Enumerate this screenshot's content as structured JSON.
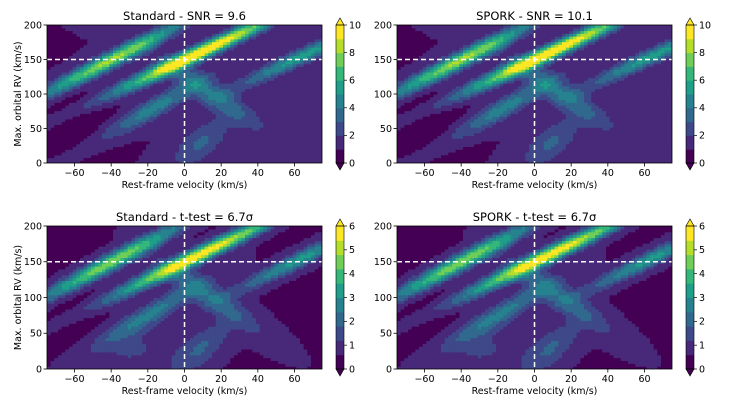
{
  "figure": {
    "colormap": [
      "#440154",
      "#482878",
      "#3e4989",
      "#31688e",
      "#26828e",
      "#1f9e89",
      "#35b779",
      "#6ece58",
      "#b5de2b",
      "#fde725"
    ],
    "background": "#ffffff"
  },
  "chart_data": [
    {
      "type": "heatmap",
      "title": "Standard - SNR = 9.6",
      "xlabel": "Rest-frame velocity (km/s)",
      "ylabel": "Max. orbital RV (km/s)",
      "xlim": [
        -75,
        75
      ],
      "ylim": [
        0,
        200
      ],
      "xticks": [
        "-60",
        "-40",
        "-20",
        "0",
        "20",
        "40",
        "60"
      ],
      "yticks": [
        "0",
        "50",
        "100",
        "150",
        "200"
      ],
      "colorbar": {
        "min": 0,
        "max": 10,
        "ticks": [
          "0",
          "2",
          "4",
          "6",
          "8",
          "10"
        ]
      },
      "crosshair": {
        "x": 0,
        "y": 150
      },
      "peak": {
        "x": 0,
        "y": 150,
        "value": 9.6
      }
    },
    {
      "type": "heatmap",
      "title": "SPORK - SNR = 10.1",
      "xlabel": "Rest-frame velocity (km/s)",
      "ylabel": "",
      "xlim": [
        -75,
        75
      ],
      "ylim": [
        0,
        200
      ],
      "xticks": [
        "-60",
        "-40",
        "-20",
        "0",
        "20",
        "40",
        "60"
      ],
      "yticks": [
        "0",
        "50",
        "100",
        "150",
        "200"
      ],
      "colorbar": {
        "min": 0,
        "max": 10,
        "ticks": [
          "0",
          "2",
          "4",
          "6",
          "8",
          "10"
        ]
      },
      "crosshair": {
        "x": 0,
        "y": 150
      },
      "peak": {
        "x": 0,
        "y": 150,
        "value": 10.1
      }
    },
    {
      "type": "heatmap",
      "title": "Standard - t-test = 6.7σ",
      "xlabel": "Rest-frame velocity (km/s)",
      "ylabel": "Max. orbital RV (km/s)",
      "xlim": [
        -75,
        75
      ],
      "ylim": [
        0,
        200
      ],
      "xticks": [
        "-60",
        "-40",
        "-20",
        "0",
        "20",
        "40",
        "60"
      ],
      "yticks": [
        "0",
        "50",
        "100",
        "150",
        "200"
      ],
      "colorbar": {
        "min": 0,
        "max": 6,
        "ticks": [
          "0",
          "1",
          "2",
          "3",
          "4",
          "5",
          "6"
        ]
      },
      "crosshair": {
        "x": 0,
        "y": 150
      },
      "peak": {
        "x": 0,
        "y": 150,
        "value": 6.7
      }
    },
    {
      "type": "heatmap",
      "title": "SPORK - t-test = 6.7σ",
      "xlabel": "Rest-frame velocity (km/s)",
      "ylabel": "",
      "xlim": [
        -75,
        75
      ],
      "ylim": [
        0,
        200
      ],
      "xticks": [
        "-60",
        "-40",
        "-20",
        "0",
        "20",
        "40",
        "60"
      ],
      "yticks": [
        "0",
        "50",
        "100",
        "150",
        "200"
      ],
      "colorbar": {
        "min": 0,
        "max": 6,
        "ticks": [
          "0",
          "1",
          "2",
          "3",
          "4",
          "5",
          "6"
        ]
      },
      "crosshair": {
        "x": 0,
        "y": 150
      },
      "peak": {
        "x": 0,
        "y": 150,
        "value": 6.7
      }
    }
  ]
}
